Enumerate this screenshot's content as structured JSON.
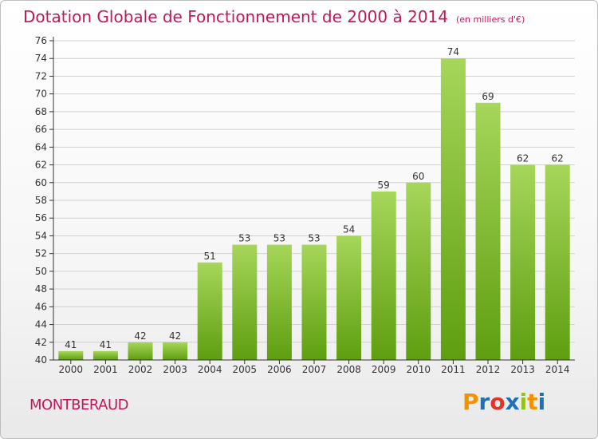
{
  "header": {
    "title": "Dotation Globale de Fonctionnement de 2000 à 2014",
    "subtitle": "(en milliers d'€)"
  },
  "footer": {
    "commune": "MONTBERAUD",
    "logo_letters": [
      "P",
      "r",
      "o",
      "x",
      "i",
      "t",
      "i"
    ],
    "logo_colors": [
      "#f39200",
      "#1d71b8",
      "#e6332a",
      "#1d71b8",
      "#95c11f",
      "#f39200",
      "#1d71b8"
    ]
  },
  "colors": {
    "bar_light": "#a6d65a",
    "bar_dark": "#5e9e10",
    "axis": "#333333",
    "grid": "#d0d0d0",
    "title": "#c2185b"
  },
  "chart_data": {
    "type": "bar",
    "categories": [
      "2000",
      "2001",
      "2002",
      "2003",
      "2004",
      "2005",
      "2006",
      "2007",
      "2008",
      "2009",
      "2010",
      "2011",
      "2012",
      "2013",
      "2014"
    ],
    "values": [
      41,
      41,
      42,
      42,
      51,
      53,
      53,
      53,
      54,
      59,
      60,
      74,
      69,
      62,
      62
    ],
    "title": "Dotation Globale de Fonctionnement de 2000 à 2014",
    "subtitle": "(en milliers d'€)",
    "ylim": [
      40,
      76
    ],
    "ytick_step": 2,
    "grid": true
  }
}
